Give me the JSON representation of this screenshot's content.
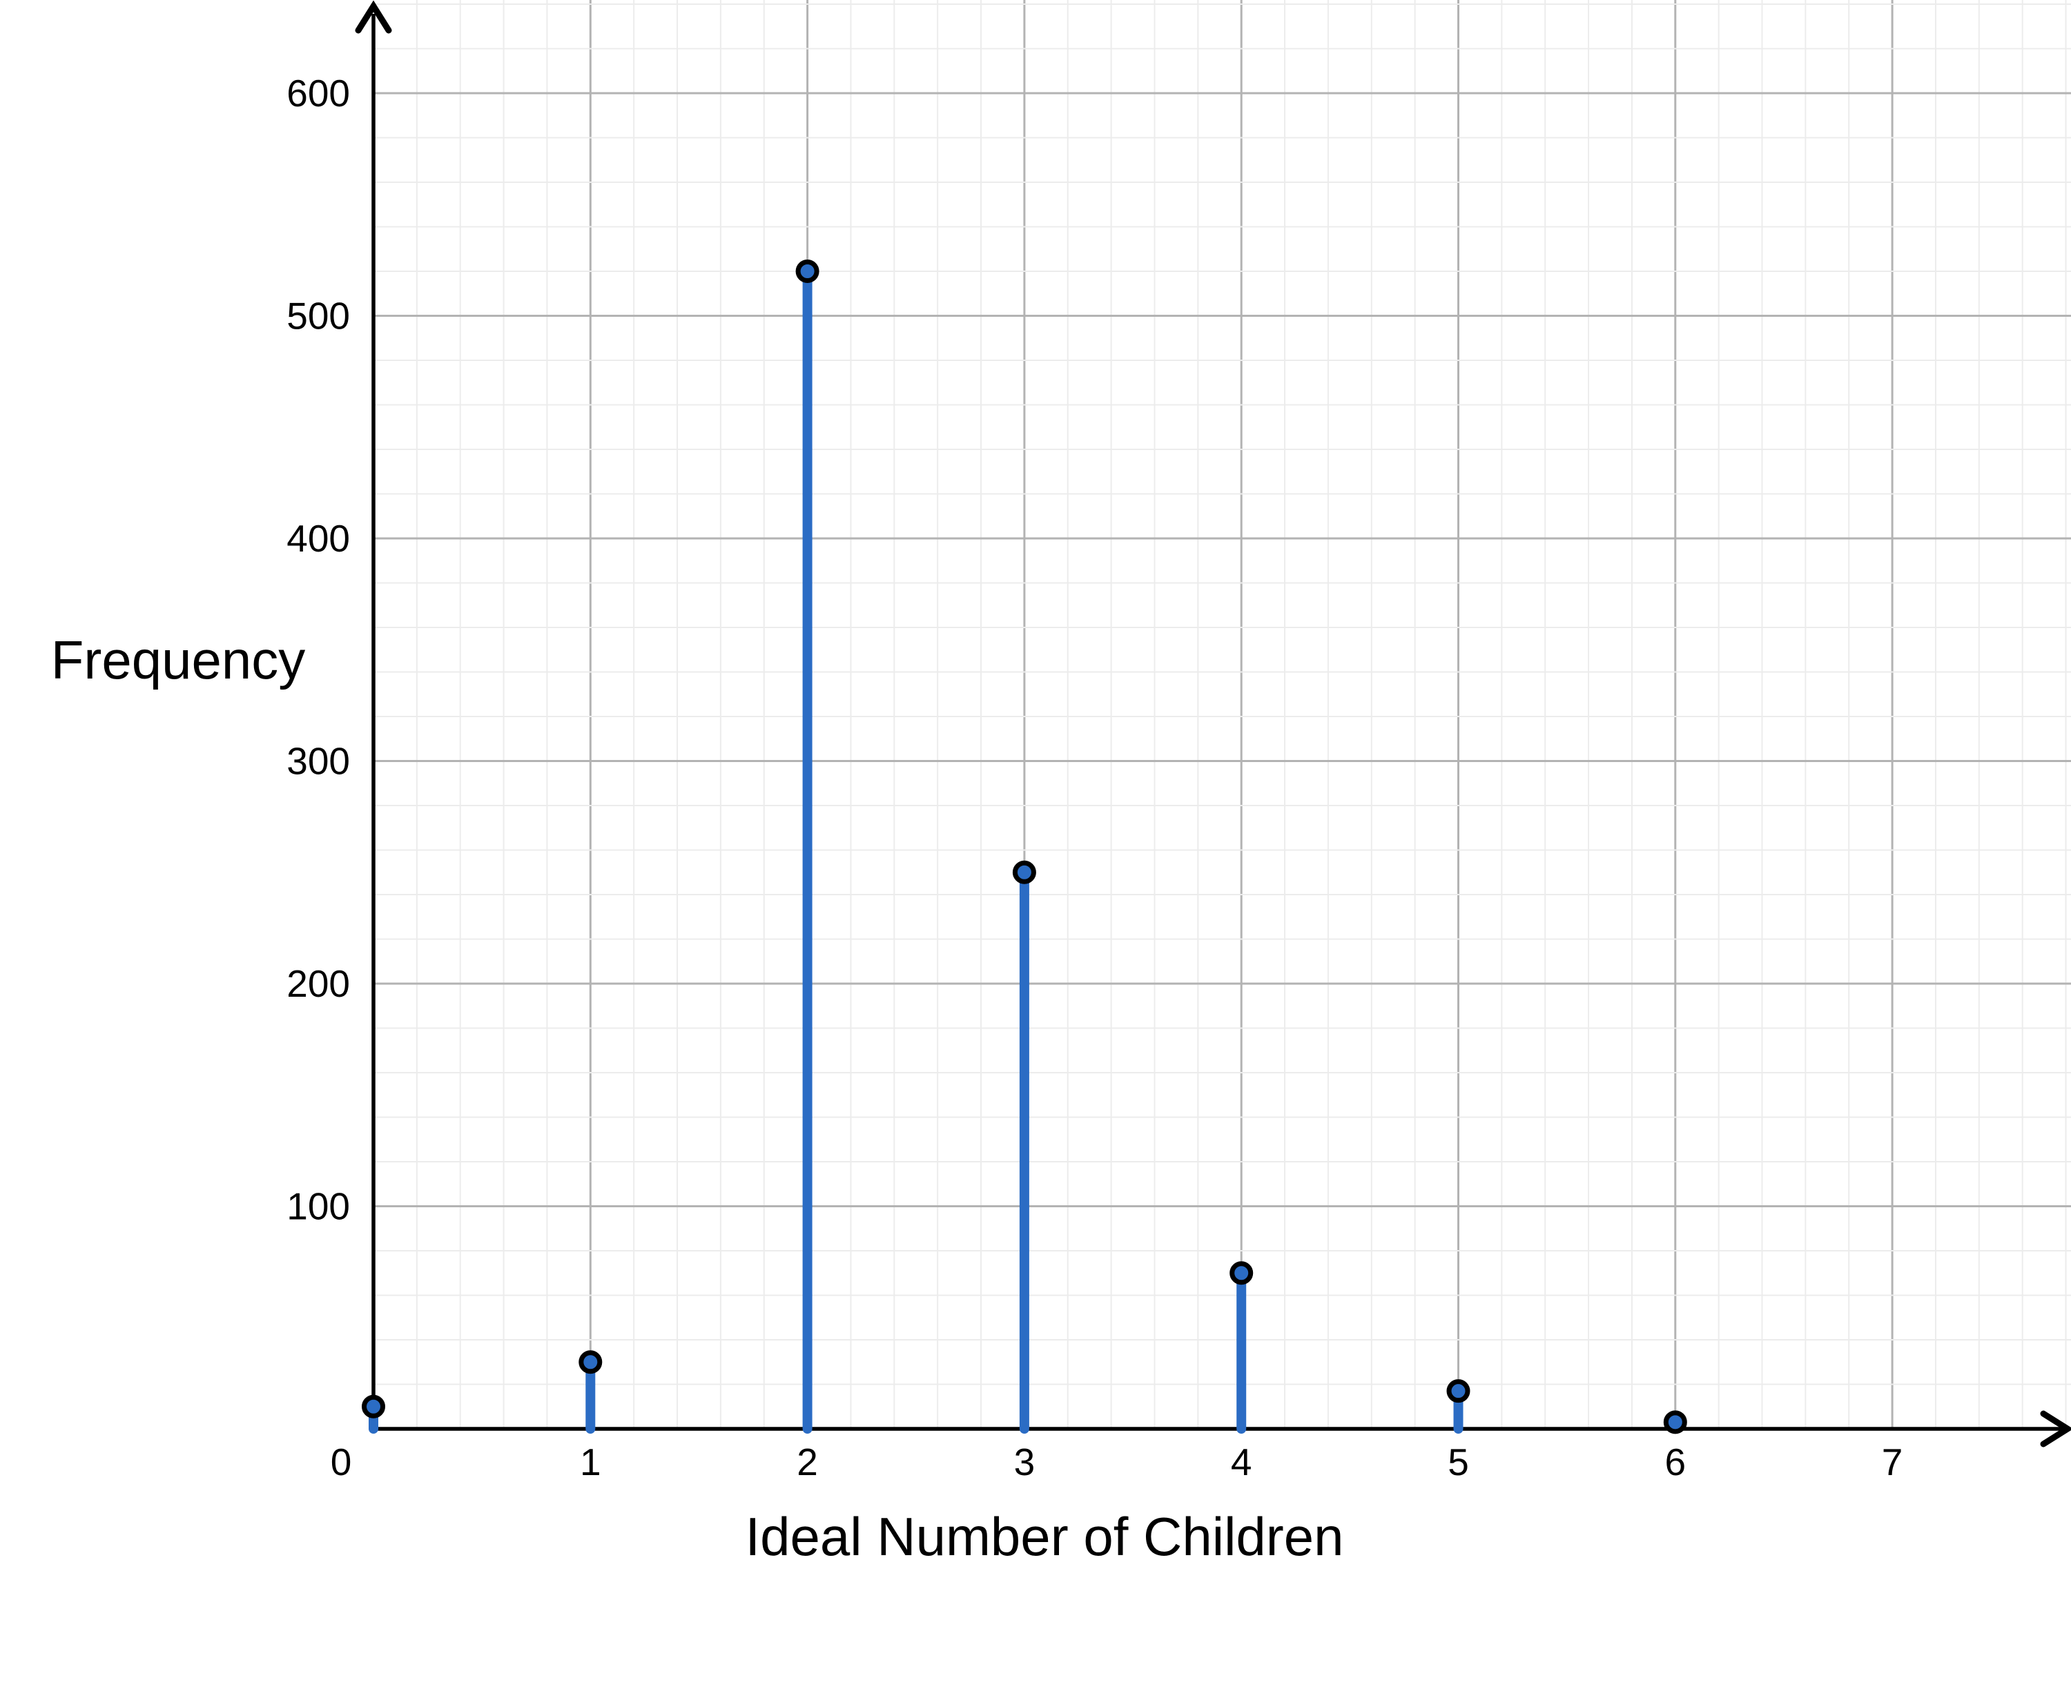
{
  "chart_data": {
    "type": "bar",
    "variant": "lollipop-stem-plot",
    "title": "",
    "xlabel": "Ideal Number of Children",
    "ylabel": "Frequency",
    "categories": [
      0,
      1,
      2,
      3,
      4,
      5,
      6
    ],
    "values": [
      10,
      30,
      520,
      250,
      70,
      17,
      3
    ],
    "x_tick_labels": [
      "0",
      "1",
      "2",
      "3",
      "4",
      "5",
      "6",
      "7"
    ],
    "y_tick_labels": [
      "100",
      "200",
      "300",
      "400",
      "500",
      "600"
    ],
    "xlim": [
      0,
      7.8
    ],
    "ylim": [
      0,
      642
    ],
    "grid": {
      "on": true,
      "minor_x_step": 0.2,
      "minor_y_step": 20,
      "major_x_step": 1,
      "major_y_step": 100
    },
    "legend": {
      "show": false
    },
    "marker": "filled-circle-with-black-outline",
    "axis_arrows": [
      "top",
      "right"
    ]
  },
  "colors": {
    "background": "#ffffff",
    "stem": "#2b6cc4",
    "dot_fill": "#2b6cc4",
    "dot_stroke": "#000000",
    "axis": "#000000",
    "grid_minor": "#ececec",
    "grid_major": "#b3b3b3",
    "text": "#000000"
  }
}
